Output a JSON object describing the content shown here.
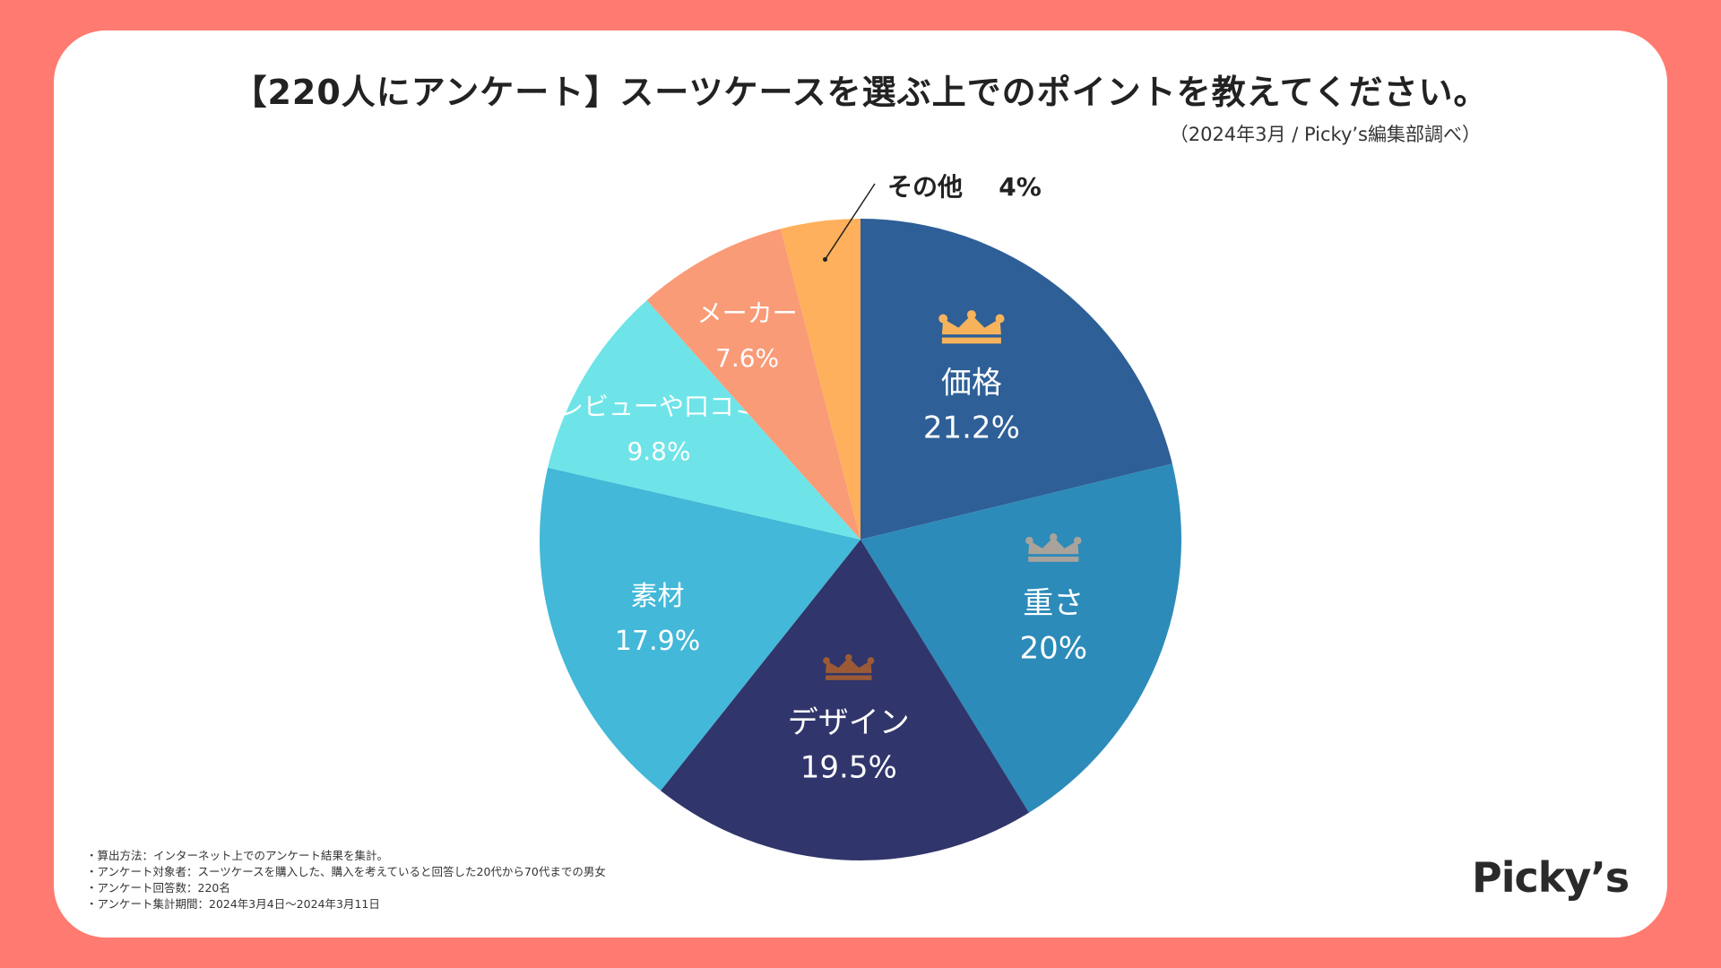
{
  "header": {
    "title": "【220人にアンケート】スーツケースを選ぶ上でのポイントを教えてください。",
    "source": "（2024年3月 / Picky’s編集部調べ）"
  },
  "chart_data": {
    "type": "pie",
    "title": "【220人にアンケート】スーツケースを選ぶ上でのポイントを教えてください。",
    "unit": "%",
    "start_angle_deg": 0,
    "direction": "clockwise",
    "slices": [
      {
        "label": "価格",
        "value": 21.2,
        "display": "21.2%",
        "color": "#2e5f97",
        "label_color": "#ffffff",
        "rank": 1,
        "crown_color": "#f6b35c"
      },
      {
        "label": "重さ",
        "value": 20,
        "display": "20%",
        "color": "#2c8bb9",
        "label_color": "#ffffff",
        "rank": 2,
        "crown_color": "#a9a39b"
      },
      {
        "label": "デザイン",
        "value": 19.5,
        "display": "19.5%",
        "color": "#30356b",
        "label_color": "#ffffff",
        "rank": 3,
        "crown_color": "#9b5a35"
      },
      {
        "label": "素材",
        "value": 17.9,
        "display": "17.9%",
        "color": "#43b8d8",
        "label_color": "#ffffff"
      },
      {
        "label": "レビューや口コミ",
        "value": 9.8,
        "display": "9.8%",
        "color": "#6ee4e8",
        "label_color": "#ffffff"
      },
      {
        "label": "メーカー",
        "value": 7.6,
        "display": "7.6%",
        "color": "#f99b77",
        "label_color": "#ffffff"
      },
      {
        "label": "その他",
        "value": 4,
        "display": "4%",
        "color": "#ffb05c",
        "label_color": "#222222",
        "external": true
      }
    ]
  },
  "notes": [
    "・算出方法：インターネット上でのアンケート結果を集計。",
    "・アンケート対象者：スーツケースを購入した、購入を考えていると回答した20代から70代までの男女",
    "・アンケート回答数：220名",
    "・アンケート集計期間：2024年3月4日〜2024年3月11日"
  ],
  "brand": {
    "logo": "Picky’s"
  }
}
